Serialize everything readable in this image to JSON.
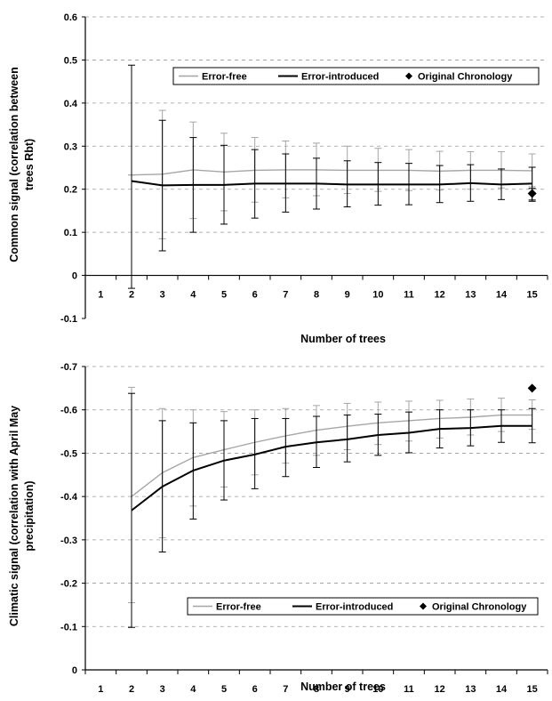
{
  "chart_data": [
    {
      "type": "line",
      "xlabel": "Number of trees",
      "ylabel_lines": [
        "Common signal (correlation  between",
        "trees Rbt)"
      ],
      "ylim": [
        -0.1,
        0.6
      ],
      "yticks": [
        -0.1,
        0,
        0.1,
        0.2,
        0.3,
        0.4,
        0.5,
        0.6
      ],
      "ytick_labels": [
        "-0.1",
        "0",
        "0.1",
        "0.2",
        "0.3",
        "0.4",
        "0.5",
        "0.6"
      ],
      "categories": [
        "1",
        "2",
        "3",
        "4",
        "5",
        "6",
        "7",
        "8",
        "9",
        "10",
        "11",
        "12",
        "13",
        "14",
        "15"
      ],
      "grid": "horizontal dashed",
      "legend_position": "top-center",
      "series": [
        {
          "name": "Error-free",
          "color": "#a6a6a6",
          "x": [
            2,
            3,
            4,
            5,
            6,
            7,
            8,
            9,
            10,
            11,
            12,
            13,
            14,
            15
          ],
          "values": [
            0.233,
            0.235,
            0.245,
            0.24,
            0.244,
            0.245,
            0.245,
            0.244,
            0.244,
            0.244,
            0.242,
            0.244,
            0.244,
            0.243
          ],
          "err_low": [
            0.233,
            0.085,
            0.132,
            0.15,
            0.17,
            0.18,
            0.185,
            0.19,
            0.195,
            0.197,
            0.198,
            0.2,
            0.203,
            0.206
          ],
          "err_high": [
            0.233,
            0.383,
            0.356,
            0.33,
            0.32,
            0.312,
            0.307,
            0.3,
            0.295,
            0.292,
            0.288,
            0.287,
            0.287,
            0.282
          ]
        },
        {
          "name": "Error-introduced",
          "color": "#000000",
          "x": [
            2,
            3,
            4,
            5,
            6,
            7,
            8,
            9,
            10,
            11,
            12,
            13,
            14,
            15
          ],
          "values": [
            0.219,
            0.209,
            0.21,
            0.21,
            0.213,
            0.213,
            0.213,
            0.211,
            0.211,
            0.211,
            0.211,
            0.214,
            0.211,
            0.213
          ],
          "err_low": [
            -0.03,
            0.057,
            0.1,
            0.119,
            0.133,
            0.147,
            0.154,
            0.159,
            0.163,
            0.164,
            0.169,
            0.172,
            0.176,
            0.175
          ],
          "err_high": [
            0.488,
            0.36,
            0.32,
            0.302,
            0.292,
            0.282,
            0.272,
            0.266,
            0.262,
            0.26,
            0.255,
            0.257,
            0.247,
            0.251
          ]
        },
        {
          "name": "Original Chronology",
          "marker": "diamond",
          "color": "#000000",
          "x": [
            15
          ],
          "values": [
            0.19
          ],
          "err_low": [
            0.172
          ],
          "err_high": [
            0.202
          ]
        }
      ]
    },
    {
      "type": "line",
      "xlabel": "Number of trees",
      "ylabel_lines": [
        "Climatic signal (correlation  with April May",
        "precipitation)"
      ],
      "ylim": [
        0,
        -0.7
      ],
      "yticks": [
        0,
        -0.1,
        -0.2,
        -0.3,
        -0.4,
        -0.5,
        -0.6,
        -0.7
      ],
      "ytick_labels": [
        "0",
        "-0.1",
        "-0.2",
        "-0.3",
        "-0.4",
        "-0.5",
        "-0.6",
        "-0.7"
      ],
      "categories": [
        "1",
        "2",
        "3",
        "4",
        "5",
        "6",
        "7",
        "8",
        "9",
        "10",
        "11",
        "12",
        "13",
        "14",
        "15"
      ],
      "grid": "horizontal dashed",
      "legend_position": "bottom-right",
      "series": [
        {
          "name": "Error-free",
          "color": "#a6a6a6",
          "x": [
            2,
            3,
            4,
            5,
            6,
            7,
            8,
            9,
            10,
            11,
            12,
            13,
            14,
            15
          ],
          "values": [
            -0.4,
            -0.455,
            -0.49,
            -0.508,
            -0.525,
            -0.54,
            -0.553,
            -0.562,
            -0.57,
            -0.575,
            -0.58,
            -0.583,
            -0.588,
            -0.588
          ],
          "err_low": [
            -0.155,
            -0.305,
            -0.378,
            -0.422,
            -0.45,
            -0.477,
            -0.495,
            -0.508,
            -0.52,
            -0.528,
            -0.535,
            -0.542,
            -0.55,
            -0.555
          ],
          "err_high": [
            -0.652,
            -0.603,
            -0.6,
            -0.596,
            -0.6,
            -0.603,
            -0.61,
            -0.615,
            -0.618,
            -0.62,
            -0.622,
            -0.625,
            -0.627,
            -0.623
          ]
        },
        {
          "name": "Error-introduced",
          "color": "#000000",
          "x": [
            2,
            3,
            4,
            5,
            6,
            7,
            8,
            9,
            10,
            11,
            12,
            13,
            14,
            15
          ],
          "values": [
            -0.368,
            -0.423,
            -0.46,
            -0.483,
            -0.497,
            -0.515,
            -0.525,
            -0.532,
            -0.542,
            -0.547,
            -0.556,
            -0.558,
            -0.563,
            -0.563
          ],
          "err_low": [
            -0.098,
            -0.272,
            -0.348,
            -0.392,
            -0.418,
            -0.446,
            -0.467,
            -0.48,
            -0.495,
            -0.501,
            -0.512,
            -0.517,
            -0.525,
            -0.524
          ],
          "err_high": [
            -0.638,
            -0.575,
            -0.57,
            -0.575,
            -0.58,
            -0.58,
            -0.585,
            -0.588,
            -0.59,
            -0.595,
            -0.6,
            -0.6,
            -0.6,
            -0.603
          ]
        },
        {
          "name": "Original Chronology",
          "marker": "diamond",
          "color": "#000000",
          "x": [
            15
          ],
          "values": [
            -0.65
          ]
        }
      ]
    }
  ]
}
